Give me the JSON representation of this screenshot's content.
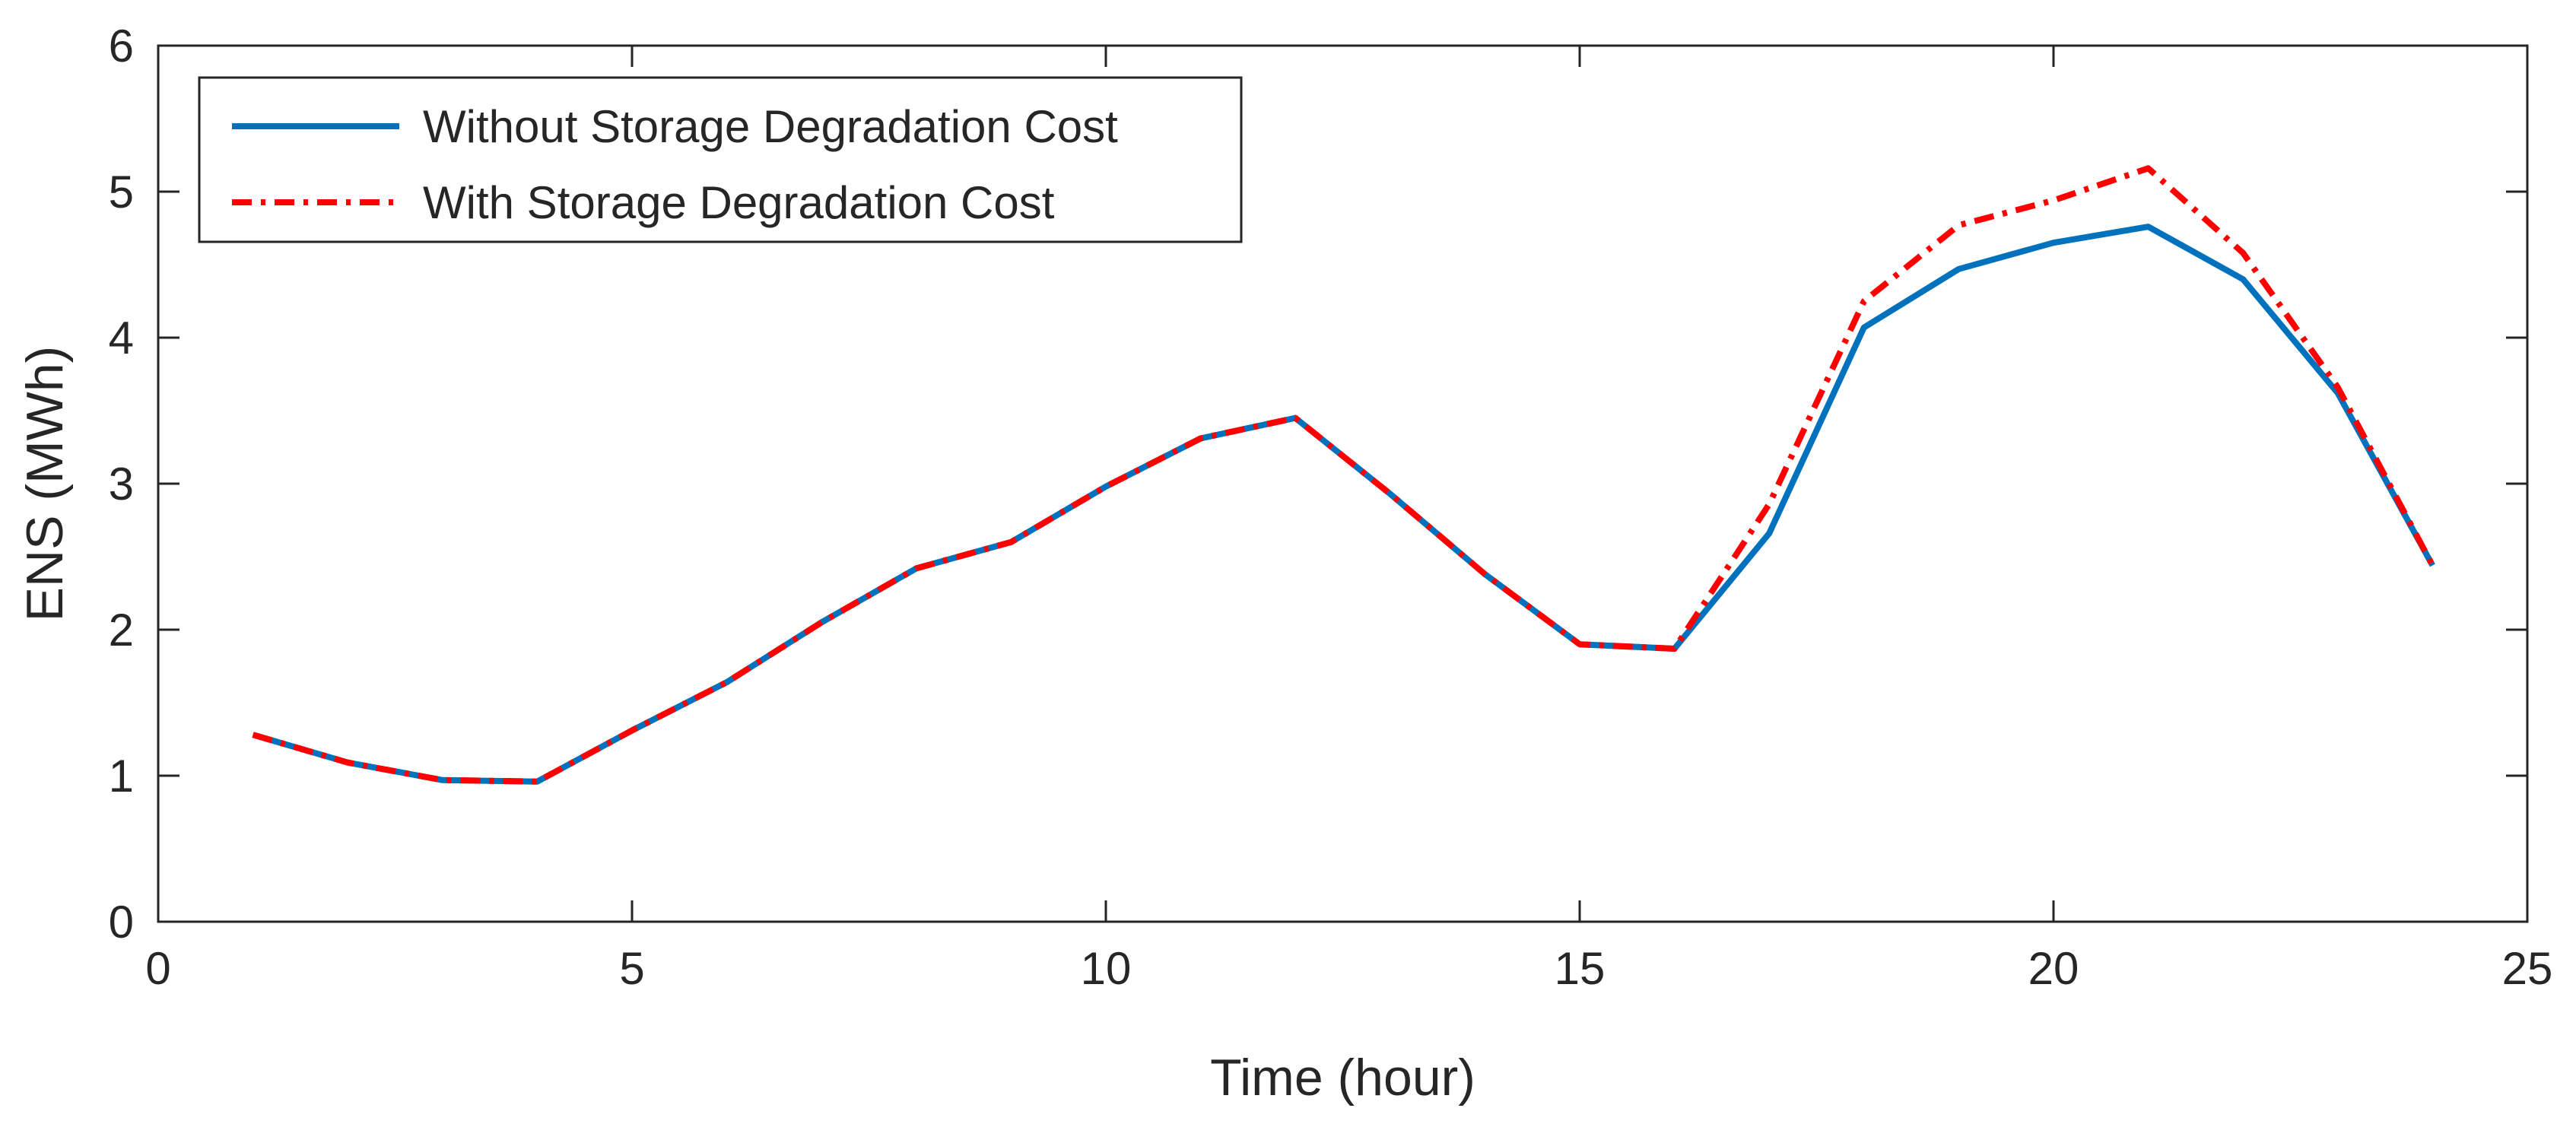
{
  "chart_data": {
    "type": "line",
    "title": "",
    "xlabel": "Time (hour)",
    "ylabel": "ENS (MWh)",
    "xlim": [
      0,
      25
    ],
    "ylim": [
      0,
      6
    ],
    "xticks": [
      0,
      5,
      10,
      15,
      20,
      25
    ],
    "yticks": [
      0,
      1,
      2,
      3,
      4,
      5,
      6
    ],
    "xtick_labels": [
      "0",
      "5",
      "10",
      "15",
      "20",
      "25"
    ],
    "ytick_labels": [
      "0",
      "1",
      "2",
      "3",
      "4",
      "5",
      "6"
    ],
    "grid": false,
    "legend_position": "top-left",
    "x": [
      1,
      2,
      3,
      4,
      5,
      6,
      7,
      8,
      9,
      10,
      11,
      12,
      13,
      14,
      15,
      16,
      17,
      18,
      19,
      20,
      21,
      22,
      23,
      24
    ],
    "series": [
      {
        "name": "Without Storage Degradation Cost",
        "color": "#0072BD",
        "style": "solid",
        "values": [
          1.28,
          1.09,
          0.97,
          0.96,
          1.31,
          1.64,
          2.05,
          2.42,
          2.6,
          2.98,
          3.31,
          3.45,
          2.93,
          2.38,
          1.9,
          1.87,
          2.66,
          4.07,
          4.47,
          4.65,
          4.76,
          4.4,
          3.62,
          2.44
        ]
      },
      {
        "name": "With Storage Degradation Cost",
        "color": "#FF0000",
        "style": "dashdot",
        "values": [
          1.28,
          1.09,
          0.97,
          0.96,
          1.31,
          1.64,
          2.05,
          2.42,
          2.6,
          2.98,
          3.31,
          3.45,
          2.93,
          2.38,
          1.9,
          1.87,
          2.86,
          4.25,
          4.77,
          4.94,
          5.16,
          4.58,
          3.66,
          2.44
        ]
      }
    ]
  }
}
